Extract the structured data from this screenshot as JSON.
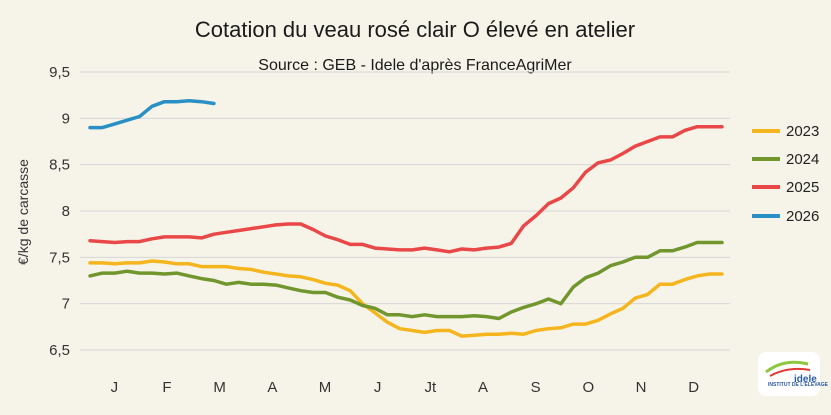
{
  "chart_data": {
    "type": "line",
    "title": "Cotation du veau rosé clair O élevé en atelier",
    "subtitle": "Source : GEB - Idele d'après FranceAgriMer",
    "ylabel": "€/kg de carcasse",
    "xlabel": "",
    "ylim": [
      6.5,
      9.5
    ],
    "yticks": [
      "6,5",
      "7",
      "7,5",
      "8",
      "8,5",
      "9",
      "9,5"
    ],
    "ytick_values": [
      6.5,
      7,
      7.5,
      8,
      8.5,
      9,
      9.5
    ],
    "xticks": [
      "J",
      "F",
      "M",
      "A",
      "M",
      "J",
      "Jt",
      "A",
      "S",
      "O",
      "N",
      "D"
    ],
    "xlim": [
      1,
      52
    ],
    "grid": "horizontal",
    "legend_position": "right",
    "series": [
      {
        "name": "2023",
        "color": "#f5b51e",
        "x": [
          1,
          2,
          3,
          4,
          5,
          6,
          7,
          8,
          9,
          10,
          11,
          12,
          13,
          14,
          15,
          16,
          17,
          18,
          19,
          20,
          21,
          22,
          23,
          24,
          25,
          26,
          27,
          28,
          29,
          30,
          31,
          32,
          33,
          34,
          35,
          36,
          37,
          38,
          39,
          40,
          41,
          42,
          43,
          44,
          45,
          46,
          47,
          48,
          49,
          50,
          51,
          52
        ],
        "y": [
          7.44,
          7.44,
          7.43,
          7.44,
          7.44,
          7.46,
          7.45,
          7.43,
          7.43,
          7.4,
          7.4,
          7.4,
          7.38,
          7.37,
          7.34,
          7.32,
          7.3,
          7.29,
          7.26,
          7.22,
          7.2,
          7.14,
          7.0,
          6.9,
          6.8,
          6.73,
          6.71,
          6.69,
          6.71,
          6.71,
          6.65,
          6.66,
          6.67,
          6.67,
          6.68,
          6.67,
          6.71,
          6.73,
          6.74,
          6.78,
          6.78,
          6.82,
          6.89,
          6.95,
          7.06,
          7.1,
          7.21,
          7.21,
          7.26,
          7.3,
          7.32,
          7.32
        ]
      },
      {
        "name": "2024",
        "color": "#72962e",
        "x": [
          1,
          2,
          3,
          4,
          5,
          6,
          7,
          8,
          9,
          10,
          11,
          12,
          13,
          14,
          15,
          16,
          17,
          18,
          19,
          20,
          21,
          22,
          23,
          24,
          25,
          26,
          27,
          28,
          29,
          30,
          31,
          32,
          33,
          34,
          35,
          36,
          37,
          38,
          39,
          40,
          41,
          42,
          43,
          44,
          45,
          46,
          47,
          48,
          49,
          50,
          51,
          52
        ],
        "y": [
          7.3,
          7.33,
          7.33,
          7.35,
          7.33,
          7.33,
          7.32,
          7.33,
          7.3,
          7.27,
          7.25,
          7.21,
          7.23,
          7.21,
          7.21,
          7.2,
          7.17,
          7.14,
          7.12,
          7.12,
          7.07,
          7.04,
          6.98,
          6.95,
          6.88,
          6.88,
          6.86,
          6.88,
          6.86,
          6.86,
          6.86,
          6.87,
          6.86,
          6.84,
          6.91,
          6.96,
          7.0,
          7.05,
          7.0,
          7.18,
          7.28,
          7.33,
          7.41,
          7.45,
          7.5,
          7.5,
          7.57,
          7.57,
          7.61,
          7.66,
          7.66,
          7.66
        ]
      },
      {
        "name": "2025",
        "color": "#ea4848",
        "x": [
          1,
          2,
          3,
          4,
          5,
          6,
          7,
          8,
          9,
          10,
          11,
          12,
          13,
          14,
          15,
          16,
          17,
          18,
          19,
          20,
          21,
          22,
          23,
          24,
          25,
          26,
          27,
          28,
          29,
          30,
          31,
          32,
          33,
          34,
          35,
          36,
          37,
          38,
          39,
          40,
          41,
          42,
          43,
          44,
          45,
          46,
          47,
          48,
          49,
          50,
          51,
          52
        ],
        "y": [
          7.68,
          7.67,
          7.66,
          7.67,
          7.67,
          7.7,
          7.72,
          7.72,
          7.72,
          7.71,
          7.75,
          7.77,
          7.79,
          7.81,
          7.83,
          7.85,
          7.86,
          7.86,
          7.8,
          7.73,
          7.69,
          7.64,
          7.64,
          7.6,
          7.59,
          7.58,
          7.58,
          7.6,
          7.58,
          7.56,
          7.59,
          7.58,
          7.6,
          7.61,
          7.65,
          7.84,
          7.95,
          8.08,
          8.14,
          8.25,
          8.42,
          8.52,
          8.55,
          8.62,
          8.7,
          8.75,
          8.8,
          8.8,
          8.87,
          8.91,
          8.91,
          8.91
        ]
      },
      {
        "name": "2026",
        "color": "#2a8fc4",
        "x": [
          1,
          2,
          3,
          4,
          5,
          6,
          7,
          8,
          9,
          10,
          11
        ],
        "y": [
          8.9,
          8.9,
          8.94,
          8.98,
          9.02,
          9.13,
          9.18,
          9.18,
          9.19,
          9.18,
          9.16
        ]
      }
    ]
  },
  "logo": {
    "label": "idele",
    "sublabel": "INSTITUT DE L'ÉLEVAGE"
  }
}
